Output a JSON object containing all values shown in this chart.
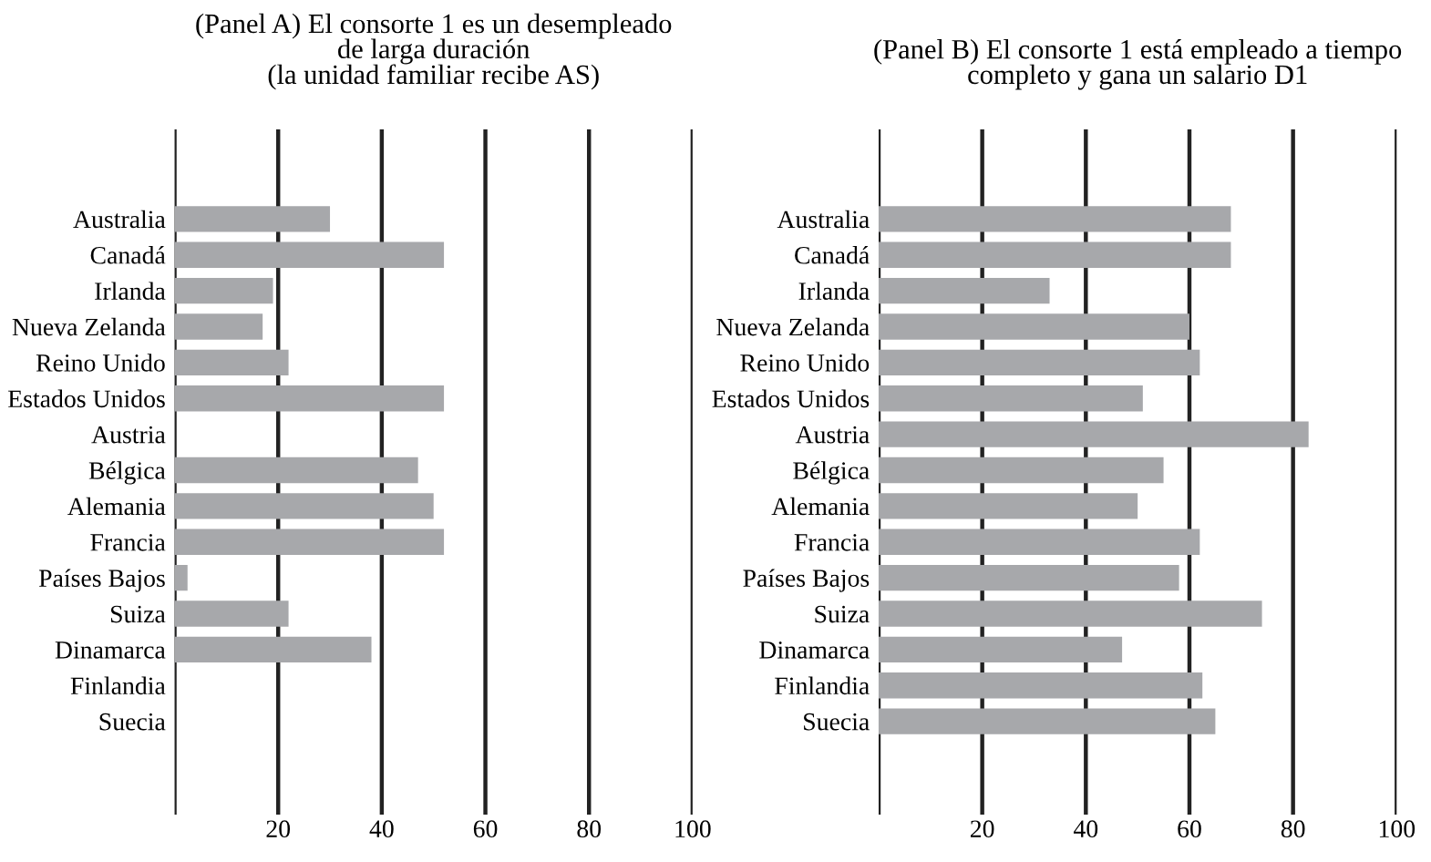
{
  "chart_data": [
    {
      "type": "bar",
      "orientation": "horizontal",
      "title": "(Panel A) El consorte 1 es un desempleado\nde larga duración\n(la unidad familiar recibe AS)",
      "categories": [
        "Australia",
        "Canadá",
        "Irlanda",
        "Nueva Zelanda",
        "Reino Unido",
        "Estados Unidos",
        "Austria",
        "Bélgica",
        "Alemania",
        "Francia",
        "Países Bajos",
        "Suiza",
        "Dinamarca",
        "Finlandia",
        "Suecia"
      ],
      "values": [
        30,
        52,
        19,
        17,
        22,
        52,
        0,
        47,
        50,
        52,
        2.5,
        22,
        38,
        0,
        0
      ],
      "color": "#a7a8ab",
      "xlim": [
        0,
        100
      ],
      "xticks": [
        {
          "value": 0,
          "label": null
        },
        20,
        40,
        60,
        80,
        100
      ],
      "grid": "x",
      "legend": false
    },
    {
      "type": "bar",
      "orientation": "horizontal",
      "title": "(Panel B) El consorte 1 está empleado a tiempo\ncompleto y gana un salario D1",
      "categories": [
        "Australia",
        "Canadá",
        "Irlanda",
        "Nueva Zelanda",
        "Reino Unido",
        "Estados Unidos",
        "Austria",
        "Bélgica",
        "Alemania",
        "Francia",
        "Países Bajos",
        "Suiza",
        "Dinamarca",
        "Finlandia",
        "Suecia"
      ],
      "values": [
        68,
        68,
        33,
        60,
        62,
        51,
        83,
        55,
        50,
        62,
        58,
        74,
        47,
        62.5,
        65
      ],
      "color": "#a7a8ab",
      "xlim": [
        0,
        100
      ],
      "xticks": [
        {
          "value": 0,
          "label": null
        },
        20,
        40,
        60,
        80,
        100
      ],
      "grid": "x",
      "legend": false
    }
  ]
}
